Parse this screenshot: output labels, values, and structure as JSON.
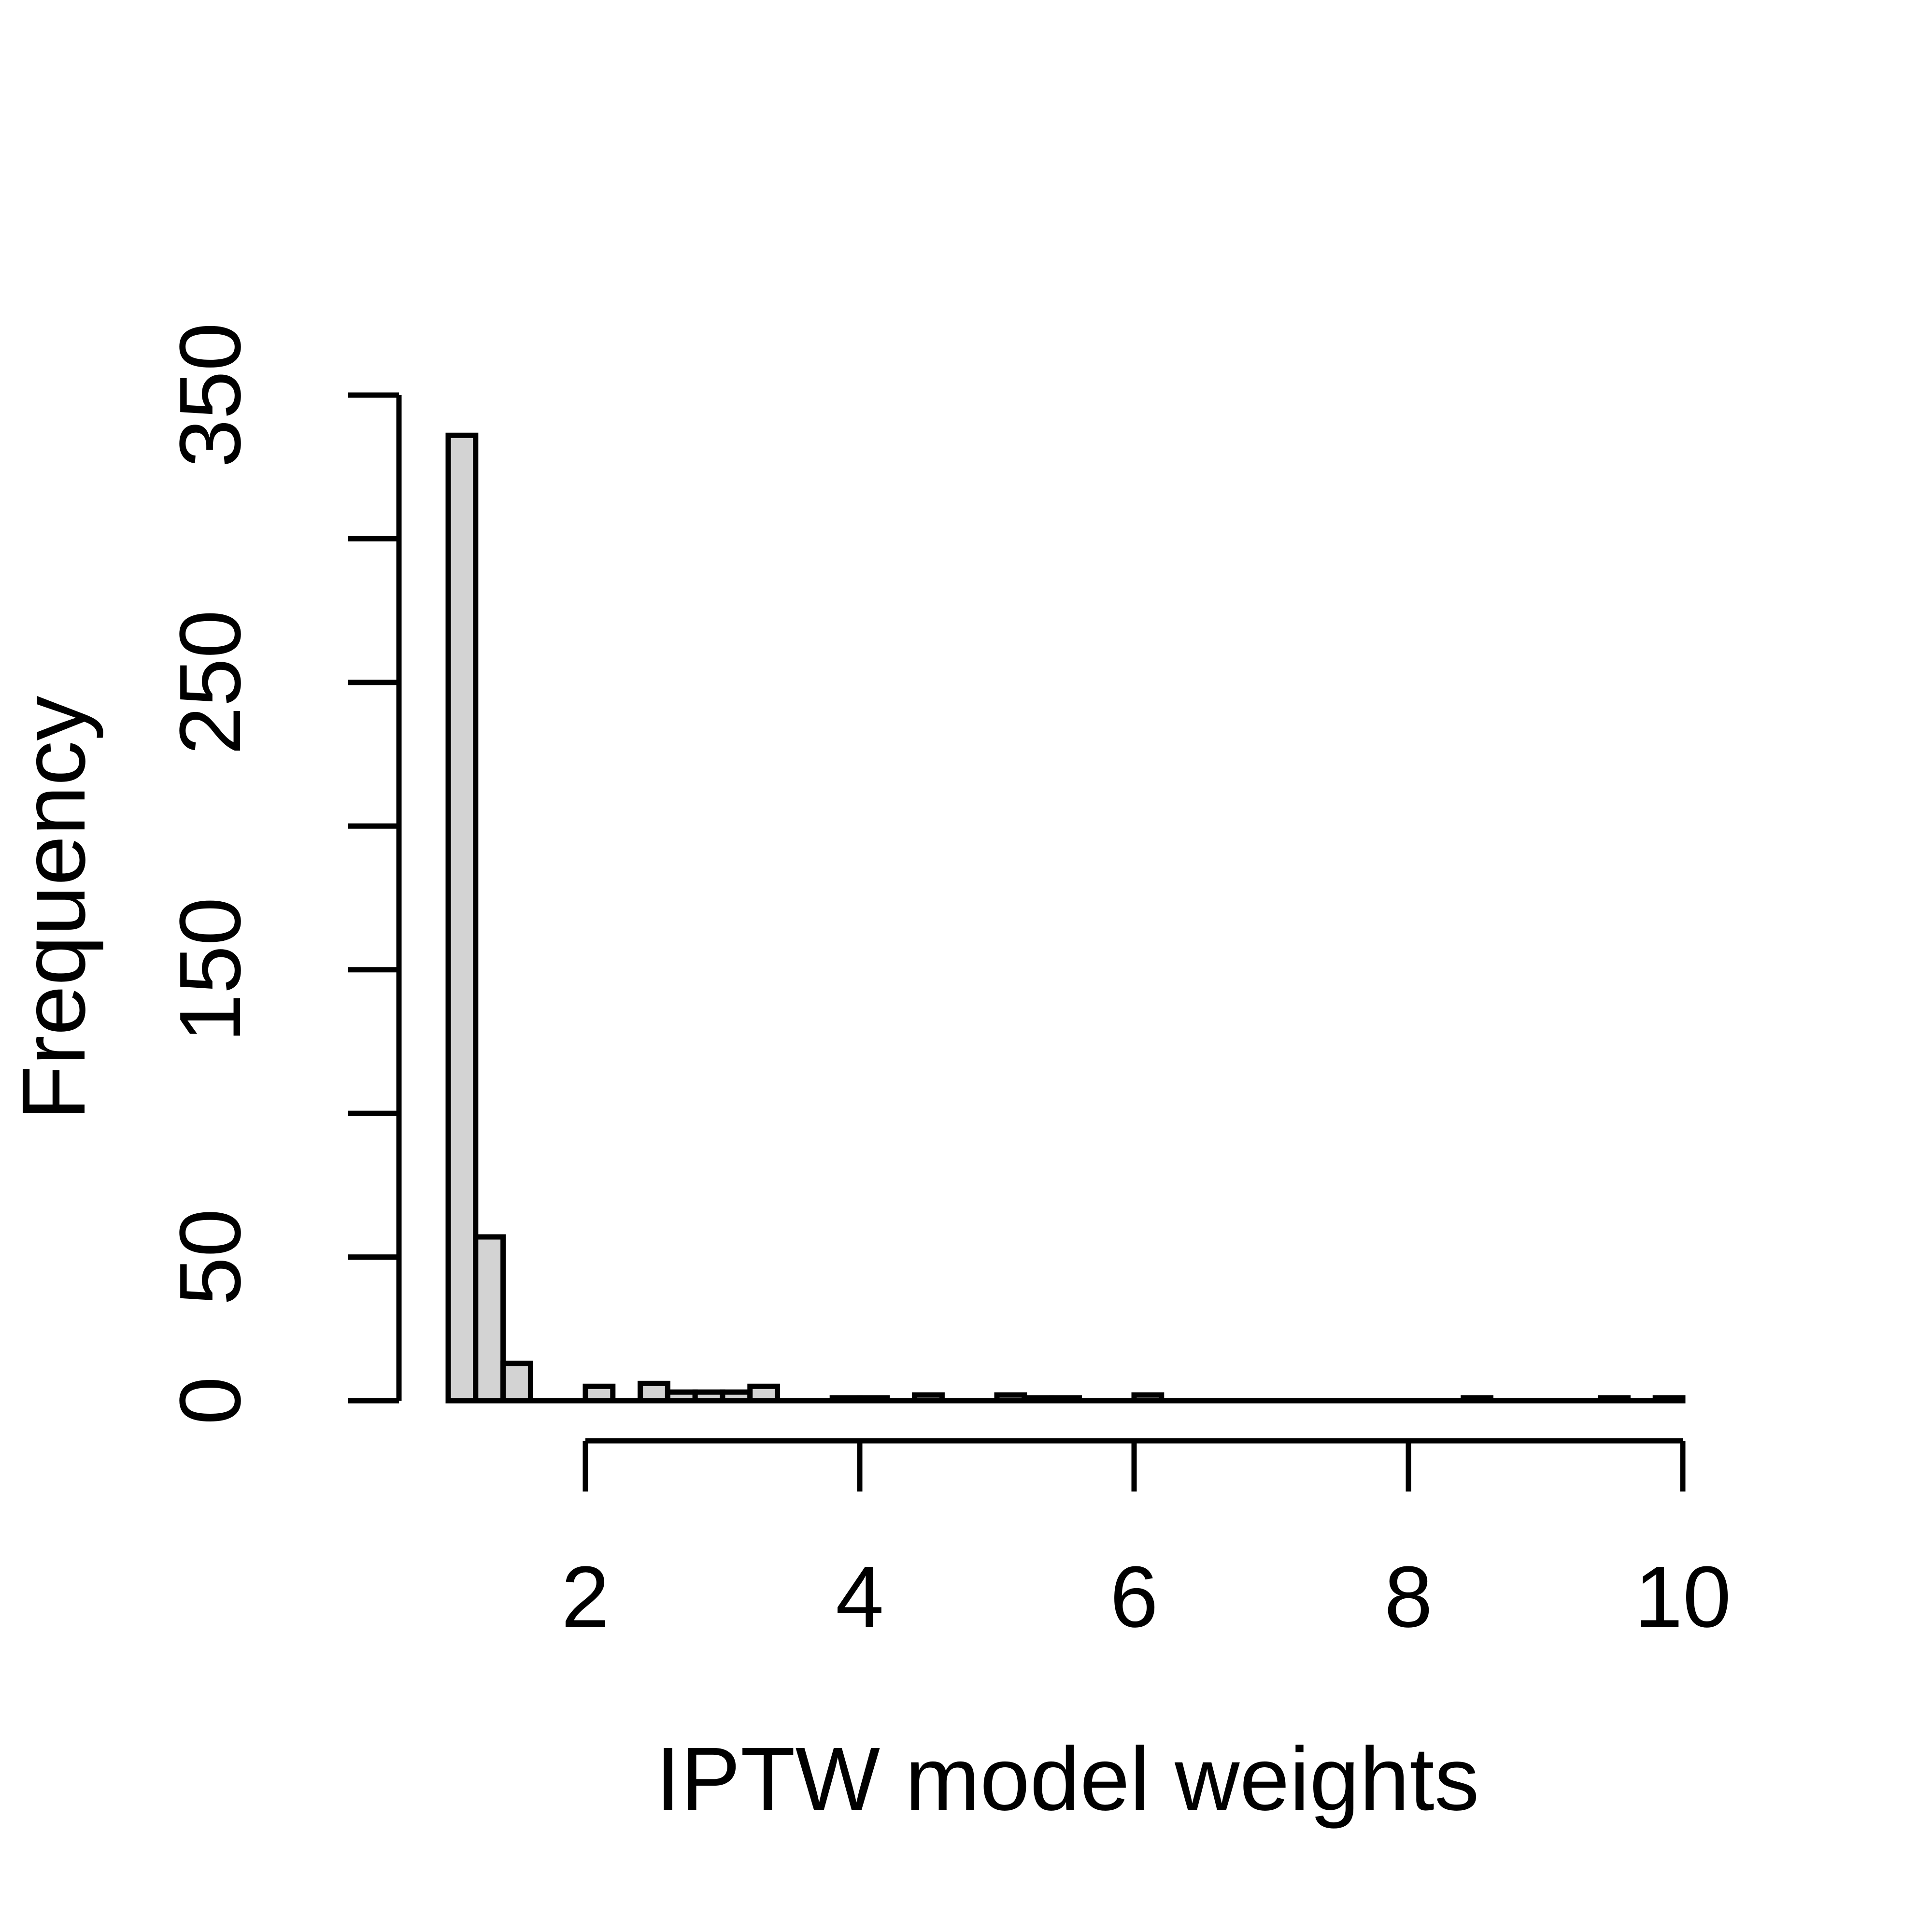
{
  "chart_data": {
    "type": "bar",
    "subtype": "histogram",
    "title": "",
    "xlabel": "IPTW model weights",
    "ylabel": "Frequency",
    "xlim": [
      1.0,
      10.0
    ],
    "ylim": [
      0,
      350
    ],
    "bin_start": 1.0,
    "bin_width": 0.2,
    "counts": [
      336,
      57,
      13,
      0,
      0,
      5,
      0,
      6,
      3,
      3,
      3,
      5,
      0,
      0,
      1,
      1,
      0,
      2,
      0,
      0,
      2,
      1,
      1,
      0,
      0,
      2,
      0,
      0,
      0,
      0,
      0,
      0,
      0,
      0,
      0,
      0,
      0,
      1,
      0,
      0,
      0,
      0,
      1,
      0,
      1
    ],
    "x_ticks": [
      2,
      4,
      6,
      8,
      10
    ],
    "y_ticks": [
      0,
      50,
      100,
      150,
      200,
      250,
      300,
      350
    ],
    "y_ticks_labeled": [
      0,
      50,
      150,
      250,
      350
    ],
    "grid": false,
    "legend": "none",
    "colors": {
      "bar_fill": "#d3d3d3",
      "line": "#000000",
      "background": "#ffffff"
    }
  }
}
